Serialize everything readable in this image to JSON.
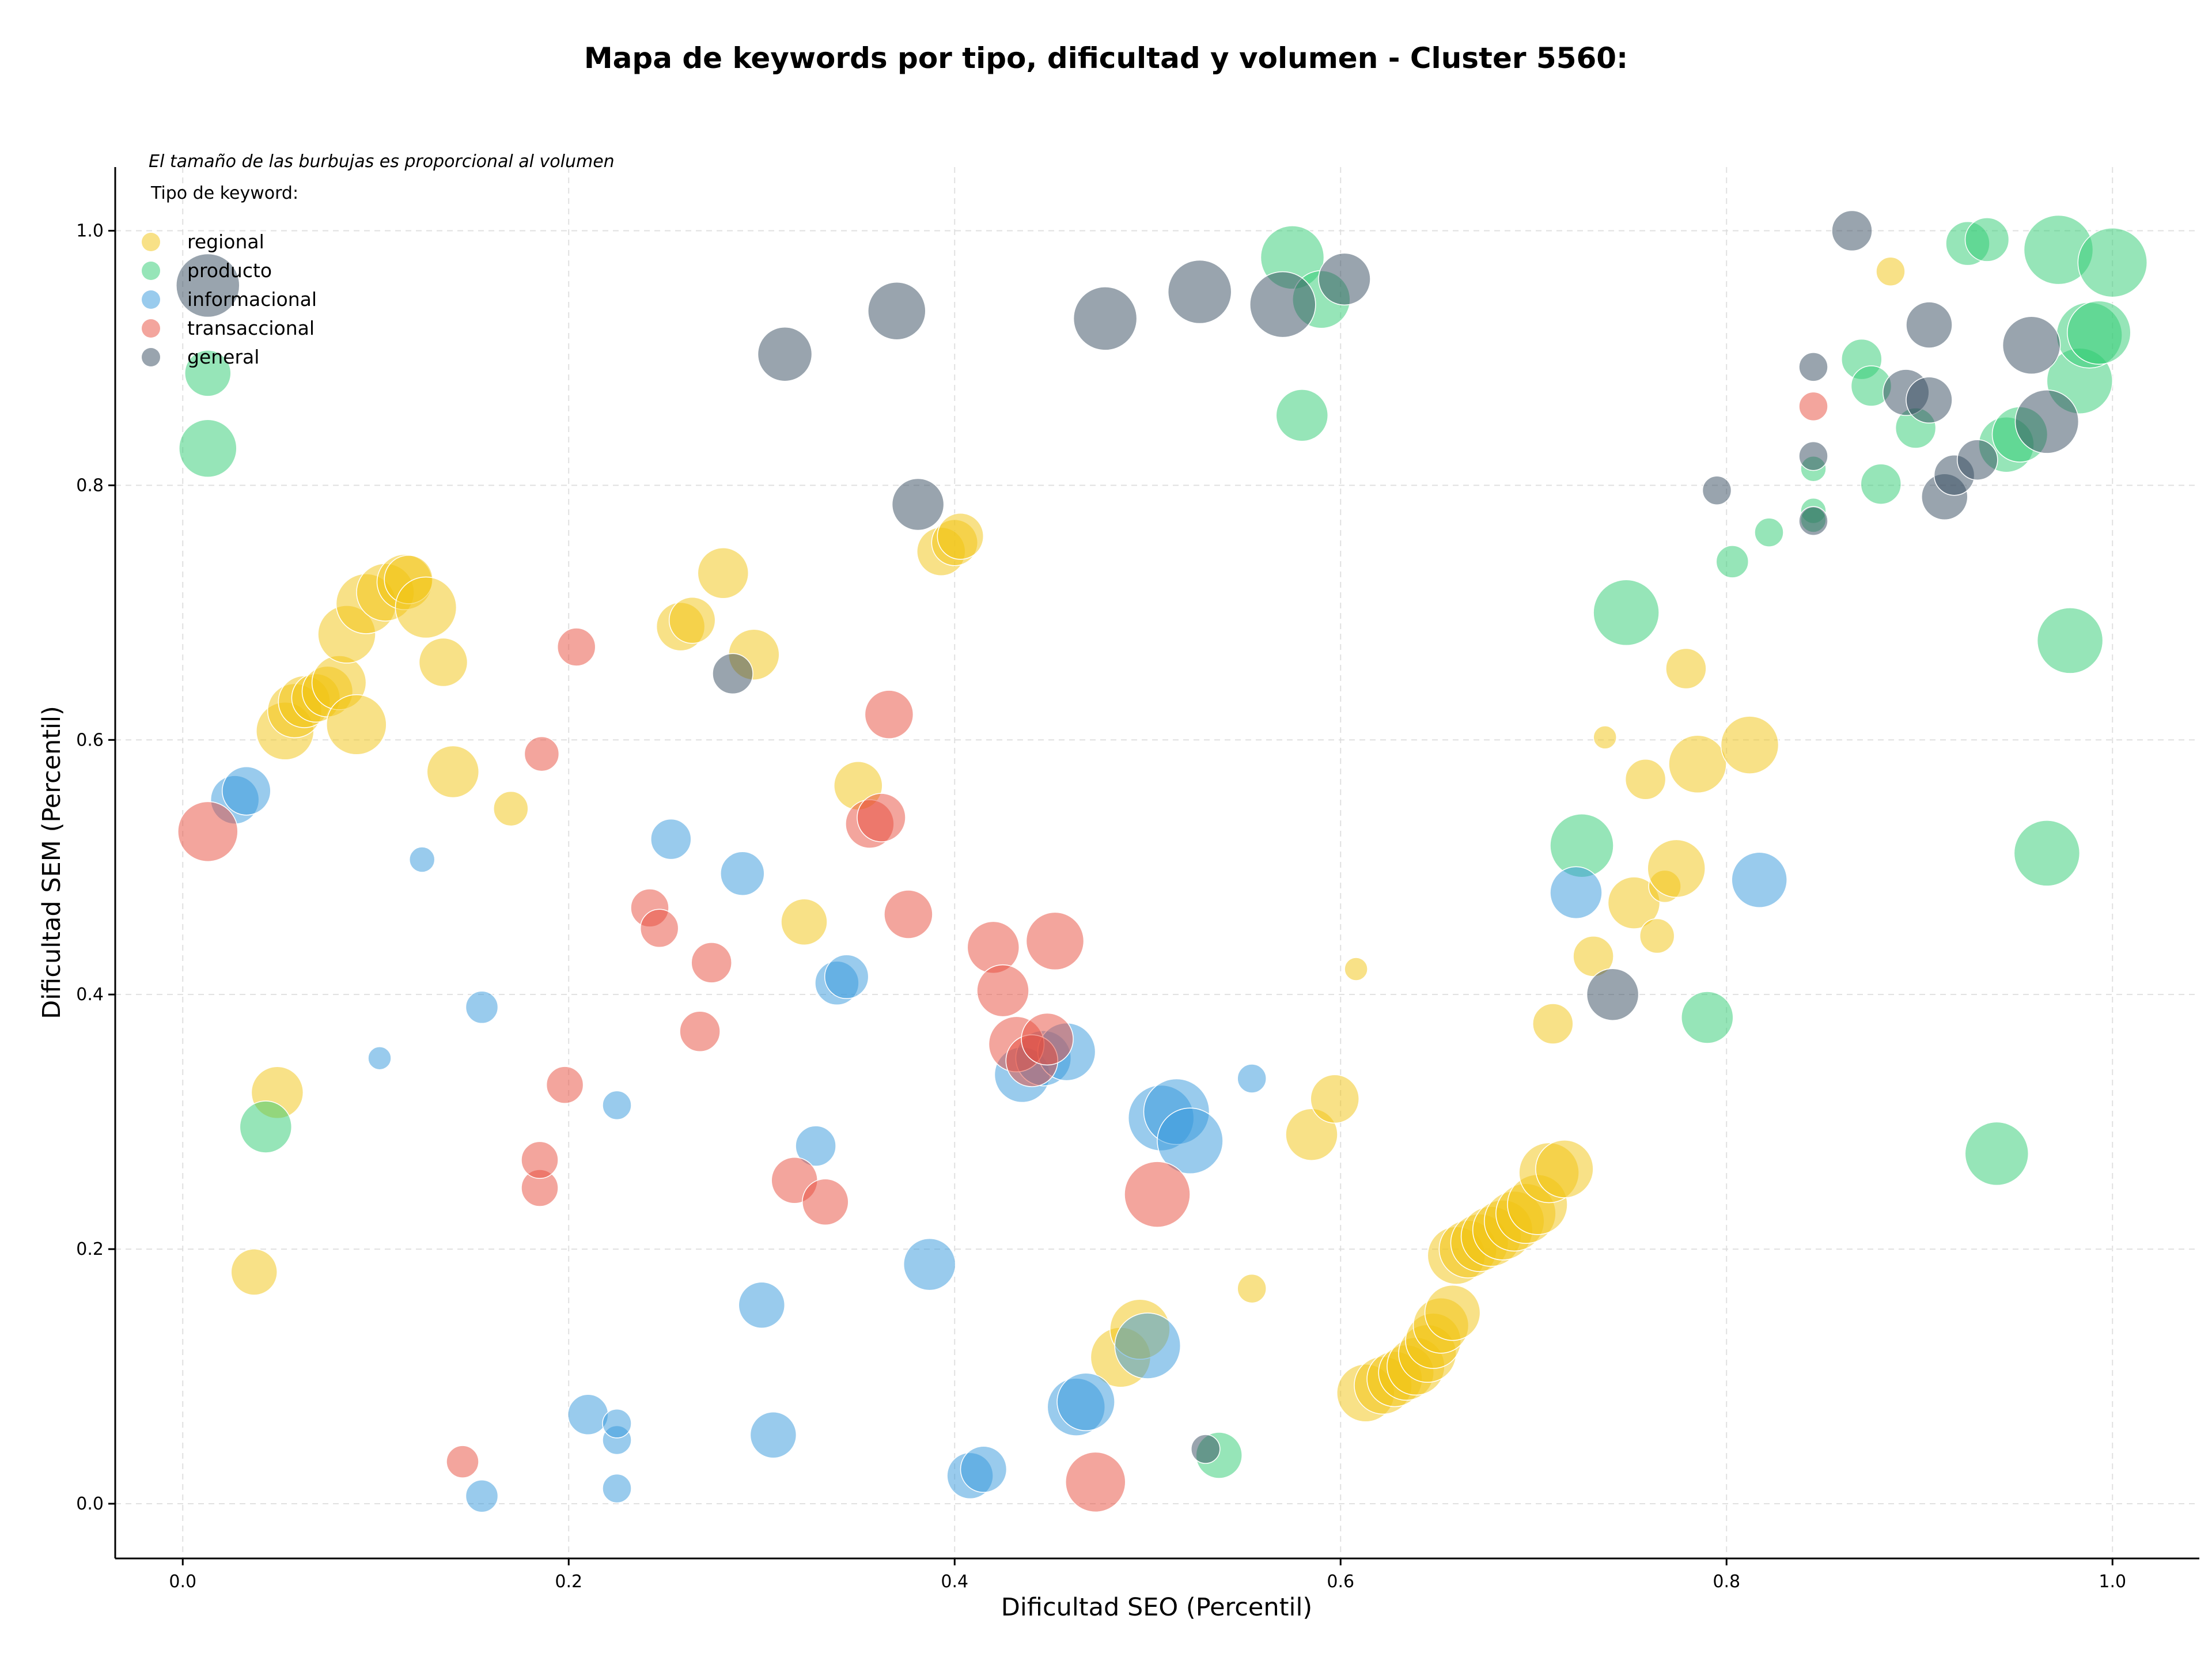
{
  "chart_data": {
    "type": "scatter",
    "title": "Mapa de keywords por tipo, dificultad y volumen - Cluster 5560:",
    "xlabel": "Dificultad SEO (Percentil)",
    "ylabel": "Dificultad SEM (Percentil)",
    "annotation": "El tamaño de las burbujas es proporcional al volumen",
    "legend_title": "Tipo de keyword:",
    "legend_position": "top-left",
    "grid": true,
    "xlim": [
      -0.035,
      1.045
    ],
    "ylim": [
      -0.043,
      1.05
    ],
    "x_ticks": [
      0.0,
      0.2,
      0.4,
      0.6,
      0.8,
      1.0
    ],
    "x_tick_labels": [
      "0.0",
      "0.2",
      "0.4",
      "0.6",
      "0.8",
      "1.0"
    ],
    "y_ticks": [
      0.0,
      0.2,
      0.4,
      0.6,
      0.8,
      1.0
    ],
    "y_tick_labels": [
      "0.0",
      "0.2",
      "0.4",
      "0.6",
      "0.8",
      "1.0"
    ],
    "series": [
      {
        "name": "regional",
        "color": "#f1c40f",
        "points": [
          [
            0.037,
            0.182,
            40
          ],
          [
            0.049,
            0.323,
            45
          ],
          [
            0.053,
            0.607,
            50
          ],
          [
            0.058,
            0.623,
            47
          ],
          [
            0.063,
            0.63,
            45
          ],
          [
            0.069,
            0.633,
            42
          ],
          [
            0.075,
            0.638,
            44
          ],
          [
            0.081,
            0.645,
            47
          ],
          [
            0.085,
            0.683,
            50
          ],
          [
            0.09,
            0.612,
            52
          ],
          [
            0.095,
            0.707,
            52
          ],
          [
            0.105,
            0.716,
            50
          ],
          [
            0.115,
            0.724,
            48
          ],
          [
            0.117,
            0.726,
            42
          ],
          [
            0.126,
            0.704,
            53
          ],
          [
            0.135,
            0.661,
            42
          ],
          [
            0.14,
            0.575,
            45
          ],
          [
            0.17,
            0.546,
            30
          ],
          [
            0.258,
            0.689,
            42
          ],
          [
            0.264,
            0.694,
            40
          ],
          [
            0.28,
            0.731,
            44
          ],
          [
            0.296,
            0.667,
            44
          ],
          [
            0.322,
            0.457,
            40
          ],
          [
            0.35,
            0.564,
            42
          ],
          [
            0.393,
            0.748,
            42
          ],
          [
            0.4,
            0.755,
            40
          ],
          [
            0.403,
            0.76,
            40
          ],
          [
            0.486,
            0.115,
            52
          ],
          [
            0.496,
            0.137,
            52
          ],
          [
            0.554,
            0.169,
            25
          ],
          [
            0.585,
            0.29,
            45
          ],
          [
            0.597,
            0.318,
            42
          ],
          [
            0.608,
            0.42,
            20
          ],
          [
            0.613,
            0.087,
            50
          ],
          [
            0.622,
            0.093,
            50
          ],
          [
            0.628,
            0.098,
            48
          ],
          [
            0.634,
            0.103,
            48
          ],
          [
            0.639,
            0.108,
            50
          ],
          [
            0.645,
            0.118,
            50
          ],
          [
            0.648,
            0.128,
            48
          ],
          [
            0.652,
            0.14,
            48
          ],
          [
            0.658,
            0.15,
            48
          ],
          [
            0.66,
            0.195,
            50
          ],
          [
            0.666,
            0.2,
            50
          ],
          [
            0.672,
            0.205,
            50
          ],
          [
            0.678,
            0.21,
            52
          ],
          [
            0.684,
            0.215,
            52
          ],
          [
            0.69,
            0.222,
            52
          ],
          [
            0.696,
            0.228,
            52
          ],
          [
            0.702,
            0.235,
            52
          ],
          [
            0.708,
            0.26,
            52
          ],
          [
            0.716,
            0.263,
            50
          ],
          [
            0.71,
            0.377,
            35
          ],
          [
            0.731,
            0.43,
            35
          ],
          [
            0.737,
            0.602,
            20
          ],
          [
            0.752,
            0.472,
            45
          ],
          [
            0.758,
            0.569,
            35
          ],
          [
            0.764,
            0.446,
            30
          ],
          [
            0.768,
            0.485,
            28
          ],
          [
            0.774,
            0.499,
            50
          ],
          [
            0.779,
            0.656,
            35
          ],
          [
            0.785,
            0.581,
            50
          ],
          [
            0.812,
            0.596,
            50
          ],
          [
            0.885,
            0.968,
            25
          ]
        ]
      },
      {
        "name": "producto",
        "color": "#2ecc71",
        "points": [
          [
            0.013,
            0.888,
            40
          ],
          [
            0.013,
            0.829,
            50
          ],
          [
            0.043,
            0.296,
            45
          ],
          [
            0.537,
            0.038,
            40
          ],
          [
            0.575,
            0.979,
            55
          ],
          [
            0.59,
            0.946,
            50
          ],
          [
            0.58,
            0.855,
            45
          ],
          [
            0.725,
            0.517,
            55
          ],
          [
            0.748,
            0.7,
            57
          ],
          [
            0.79,
            0.382,
            45
          ],
          [
            0.803,
            0.74,
            28
          ],
          [
            0.822,
            0.763,
            25
          ],
          [
            0.845,
            0.813,
            22
          ],
          [
            0.845,
            0.78,
            22
          ],
          [
            0.845,
            0.773,
            22
          ],
          [
            0.87,
            0.899,
            35
          ],
          [
            0.875,
            0.878,
            35
          ],
          [
            0.88,
            0.801,
            35
          ],
          [
            0.898,
            0.845,
            35
          ],
          [
            0.925,
            0.99,
            38
          ],
          [
            0.935,
            0.993,
            38
          ],
          [
            0.94,
            0.275,
            55
          ],
          [
            0.945,
            0.832,
            48
          ],
          [
            0.952,
            0.84,
            48
          ],
          [
            0.966,
            0.511,
            57
          ],
          [
            0.972,
            0.985,
            60
          ],
          [
            0.978,
            0.678,
            57
          ],
          [
            0.983,
            0.882,
            57
          ],
          [
            0.988,
            0.918,
            57
          ],
          [
            0.993,
            0.92,
            55
          ],
          [
            1.0,
            0.975,
            60
          ]
        ]
      },
      {
        "name": "informacional",
        "color": "#3498db",
        "points": [
          [
            0.027,
            0.553,
            42
          ],
          [
            0.033,
            0.56,
            42
          ],
          [
            0.102,
            0.35,
            20
          ],
          [
            0.124,
            0.506,
            22
          ],
          [
            0.155,
            0.006,
            28
          ],
          [
            0.155,
            0.39,
            28
          ],
          [
            0.21,
            0.07,
            35
          ],
          [
            0.225,
            0.012,
            25
          ],
          [
            0.225,
            0.05,
            25
          ],
          [
            0.225,
            0.063,
            25
          ],
          [
            0.225,
            0.313,
            25
          ],
          [
            0.253,
            0.522,
            35
          ],
          [
            0.29,
            0.495,
            38
          ],
          [
            0.3,
            0.156,
            40
          ],
          [
            0.306,
            0.054,
            40
          ],
          [
            0.328,
            0.281,
            35
          ],
          [
            0.339,
            0.409,
            38
          ],
          [
            0.344,
            0.414,
            38
          ],
          [
            0.387,
            0.188,
            45
          ],
          [
            0.408,
            0.022,
            40
          ],
          [
            0.415,
            0.027,
            40
          ],
          [
            0.435,
            0.337,
            48
          ],
          [
            0.446,
            0.35,
            48
          ],
          [
            0.458,
            0.355,
            50
          ],
          [
            0.463,
            0.076,
            50
          ],
          [
            0.468,
            0.08,
            50
          ],
          [
            0.5,
            0.124,
            57
          ],
          [
            0.507,
            0.303,
            57
          ],
          [
            0.515,
            0.308,
            57
          ],
          [
            0.522,
            0.285,
            57
          ],
          [
            0.554,
            0.334,
            25
          ],
          [
            0.722,
            0.48,
            45
          ],
          [
            0.817,
            0.49,
            48
          ]
        ]
      },
      {
        "name": "transaccional",
        "color": "#e74c3c",
        "points": [
          [
            0.013,
            0.528,
            52
          ],
          [
            0.145,
            0.033,
            28
          ],
          [
            0.185,
            0.248,
            32
          ],
          [
            0.185,
            0.27,
            32
          ],
          [
            0.186,
            0.589,
            30
          ],
          [
            0.198,
            0.329,
            32
          ],
          [
            0.204,
            0.673,
            33
          ],
          [
            0.242,
            0.468,
            33
          ],
          [
            0.247,
            0.452,
            33
          ],
          [
            0.268,
            0.371,
            35
          ],
          [
            0.274,
            0.425,
            35
          ],
          [
            0.317,
            0.254,
            40
          ],
          [
            0.333,
            0.237,
            40
          ],
          [
            0.356,
            0.534,
            42
          ],
          [
            0.362,
            0.539,
            42
          ],
          [
            0.366,
            0.62,
            42
          ],
          [
            0.376,
            0.463,
            42
          ],
          [
            0.42,
            0.437,
            45
          ],
          [
            0.425,
            0.403,
            45
          ],
          [
            0.432,
            0.361,
            48
          ],
          [
            0.44,
            0.348,
            45
          ],
          [
            0.448,
            0.365,
            45
          ],
          [
            0.452,
            0.442,
            50
          ],
          [
            0.473,
            0.017,
            52
          ],
          [
            0.505,
            0.243,
            57
          ],
          [
            0.845,
            0.862,
            25
          ]
        ]
      },
      {
        "name": "general",
        "color": "#34495e",
        "points": [
          [
            0.013,
            0.957,
            55
          ],
          [
            0.285,
            0.652,
            35
          ],
          [
            0.312,
            0.903,
            47
          ],
          [
            0.37,
            0.937,
            50
          ],
          [
            0.381,
            0.785,
            45
          ],
          [
            0.478,
            0.931,
            55
          ],
          [
            0.527,
            0.952,
            55
          ],
          [
            0.57,
            0.942,
            57
          ],
          [
            0.602,
            0.962,
            45
          ],
          [
            0.53,
            0.043,
            25
          ],
          [
            0.741,
            0.4,
            45
          ],
          [
            0.795,
            0.796,
            25
          ],
          [
            0.845,
            0.893,
            25
          ],
          [
            0.845,
            0.823,
            25
          ],
          [
            0.845,
            0.772,
            25
          ],
          [
            0.865,
            1.0,
            35
          ],
          [
            0.893,
            0.873,
            40
          ],
          [
            0.905,
            0.867,
            40
          ],
          [
            0.905,
            0.926,
            40
          ],
          [
            0.913,
            0.791,
            40
          ],
          [
            0.918,
            0.808,
            35
          ],
          [
            0.93,
            0.82,
            35
          ],
          [
            0.958,
            0.91,
            50
          ],
          [
            0.966,
            0.85,
            55
          ]
        ]
      }
    ]
  }
}
